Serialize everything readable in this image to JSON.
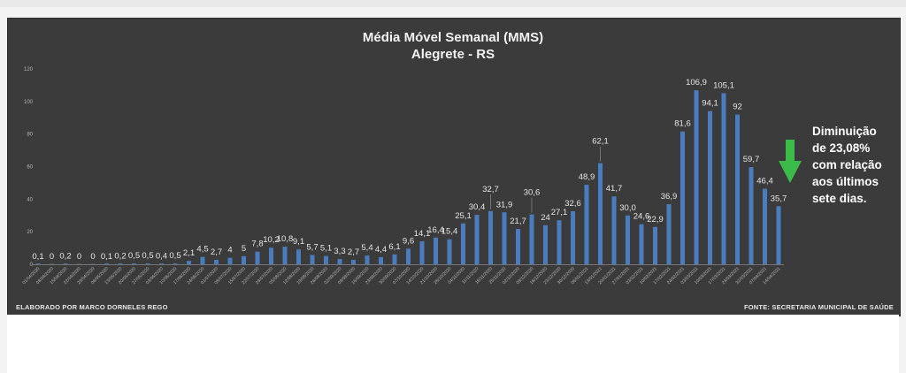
{
  "chart_data": {
    "type": "bar",
    "title": "Média Móvel Semanal (MMS)",
    "subtitle": "Alegrete - RS",
    "ylim": [
      0,
      120
    ],
    "yticks": [
      0,
      20,
      40,
      60,
      80,
      100,
      120
    ],
    "grid": false,
    "bar_color": "#4a7dc0",
    "categories": [
      "01/04/2020",
      "08/04/2020",
      "15/04/2020",
      "22/04/2020",
      "29/04/2020",
      "06/05/2020",
      "13/05/2020",
      "20/05/2020",
      "27/05/2020",
      "03/06/2020",
      "10/06/2020",
      "17/06/2020",
      "24/06/2020",
      "01/07/2020",
      "08/07/2020",
      "15/07/2020",
      "22/07/2020",
      "29/07/2020",
      "05/08/2020",
      "12/08/2020",
      "19/08/2020",
      "26/08/2020",
      "02/09/2020",
      "09/09/2020",
      "16/09/2020",
      "23/09/2020",
      "30/09/2020",
      "07/10/2020",
      "14/10/2020",
      "21/10/2020",
      "28/10/2020",
      "04/11/2020",
      "11/11/2020",
      "18/11/2020",
      "25/11/2020",
      "02/12/2020",
      "09/12/2020",
      "16/12/2020",
      "23/12/2020",
      "30/12/2020",
      "06/01/2021",
      "13/01/2021",
      "20/01/2021",
      "27/01/2021",
      "03/02/2021",
      "10/02/2021",
      "17/02/2021",
      "24/02/2021",
      "03/03/2021",
      "10/03/2021",
      "17/03/2021",
      "24/03/2021",
      "31/03/2021",
      "07/04/2021",
      "14/04/2021"
    ],
    "values": [
      0.1,
      0,
      0.2,
      0,
      0,
      0.1,
      0.2,
      0.5,
      0.5,
      0.4,
      0.5,
      2.1,
      4.5,
      2.7,
      4,
      5,
      7.8,
      10.2,
      10.8,
      9.1,
      5.7,
      5.1,
      3.3,
      2.7,
      5.4,
      4.4,
      6.1,
      9.6,
      14.1,
      16.4,
      15.4,
      25.1,
      30.4,
      32.7,
      31.9,
      21.7,
      30.6,
      24,
      27.1,
      32.6,
      48.9,
      62.1,
      41.7,
      30.0,
      24.6,
      22.9,
      36.9,
      81.6,
      106.9,
      94.1,
      105.1,
      92,
      59.7,
      46.4,
      35.7
    ],
    "labels": [
      "0,1",
      "0",
      "0,2",
      "0",
      "0",
      "0,1",
      "0,2",
      "0,5",
      "0,5",
      "0,4",
      "0,5",
      "2,1",
      "4,5",
      "2,7",
      "4",
      "5",
      "7,8",
      "10,2",
      "10,8",
      "9,1",
      "5,7",
      "5,1",
      "3,3",
      "2,7",
      "5,4",
      "4,4",
      "6,1",
      "9,6",
      "14,1",
      "16,4",
      "15,4",
      "25,1",
      "30,4",
      "32,7",
      "31,9",
      "21,7",
      "30,6",
      "24",
      "27,1",
      "32,6",
      "48,9",
      "62,1",
      "41,7",
      "30,0",
      "24,6",
      "22,9",
      "36,9",
      "81,6",
      "106,9",
      "94,1",
      "105,1",
      "92",
      "59,7",
      "46,4",
      "35,7"
    ],
    "annotation": [
      "Diminuição",
      "de 23,08%",
      "com relação",
      "aos últimos",
      "sete dias."
    ],
    "arrow_color": "#3dbb4a"
  },
  "footer": {
    "left": "ELABORADO POR MARCO  DORNELES REGO",
    "right": "FONTE: SECRETARIA MUNICIPAL DE SAÚDE"
  }
}
